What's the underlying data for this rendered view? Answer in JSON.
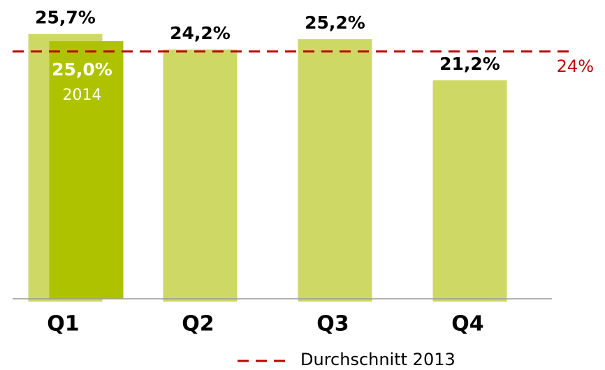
{
  "chart_data": {
    "type": "bar",
    "categories": [
      "Q1",
      "Q2",
      "Q3",
      "Q4"
    ],
    "series": [
      {
        "color": "#cdd964",
        "values": [
          25.7,
          24.2,
          25.2,
          21.2
        ],
        "value_labels": [
          "25,7%",
          "24,2%",
          "25,2%",
          "21,2%"
        ]
      },
      {
        "name": "2014",
        "color": "#afc200",
        "values": [
          25.0,
          null,
          null,
          null
        ],
        "value_labels": [
          "25,0%",
          null,
          null,
          null
        ]
      }
    ],
    "reference_line": {
      "name": "Durchschnitt 2013",
      "value": 24,
      "label": "24%",
      "color": "#c00000"
    },
    "ylim": [
      0,
      29
    ],
    "legend": "bottom"
  }
}
